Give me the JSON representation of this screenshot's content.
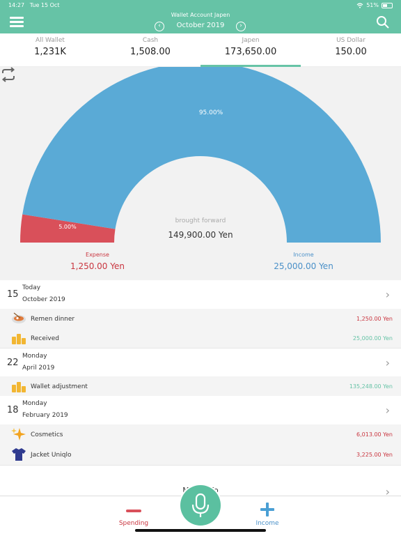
{
  "status": {
    "time": "14:27",
    "date": "Tue 15 Oct",
    "battery": "51%"
  },
  "header": {
    "subtitle": "Wallet Account Japen",
    "month": "October 2019"
  },
  "tabs": [
    {
      "name": "All Wallet",
      "value": "1,231K"
    },
    {
      "name": "Cash",
      "value": "1,508.00"
    },
    {
      "name": "Japen",
      "value": "173,650.00"
    },
    {
      "name": "US Dollar",
      "value": "150.00"
    }
  ],
  "chart": {
    "income_pct_label": "95.00%",
    "expense_pct_label": "5.00%",
    "center_label": "brought forward",
    "center_value": "149,900.00 Yen",
    "expense_label": "Expense",
    "expense_value": "1,250.00 Yen",
    "income_label": "Income",
    "income_value": "25,000.00 Yen",
    "colors": {
      "income": "#5aaad6",
      "expense": "#d9505a"
    }
  },
  "chart_data": {
    "type": "pie",
    "categories": [
      "Expense",
      "Income"
    ],
    "values": [
      5.0,
      95.0
    ]
  },
  "days": [
    {
      "num": "15",
      "day": "Today",
      "month": "October 2019",
      "items": [
        {
          "icon": "ramen-bowl-icon",
          "label": "Remen dinner",
          "amount": "1,250.00 Yen",
          "type": "expense"
        },
        {
          "icon": "coins-icon",
          "label": "Received",
          "amount": "25,000.00 Yen",
          "type": "income"
        }
      ]
    },
    {
      "num": "22",
      "day": "Monday",
      "month": "April 2019",
      "items": [
        {
          "icon": "coins-icon",
          "label": "Wallet adjustment",
          "amount": "135,248.00 Yen",
          "type": "income"
        }
      ]
    },
    {
      "num": "18",
      "day": "Monday",
      "month": "February 2019",
      "items": [
        {
          "icon": "sparkle-icon",
          "label": "Cosmetics",
          "amount": "6,013.00 Yen",
          "type": "expense"
        },
        {
          "icon": "tshirt-icon",
          "label": "Jacket Uniqlo",
          "amount": "3,225.00 Yen",
          "type": "expense"
        }
      ]
    }
  ],
  "more_info": "More Info",
  "bottom": {
    "spending": "Spending",
    "income": "Income"
  },
  "colors": {
    "accent": "#66c3a6",
    "expense": "#c9353f",
    "income_text": "#66c3a6",
    "income_blue": "#4a90c8"
  }
}
